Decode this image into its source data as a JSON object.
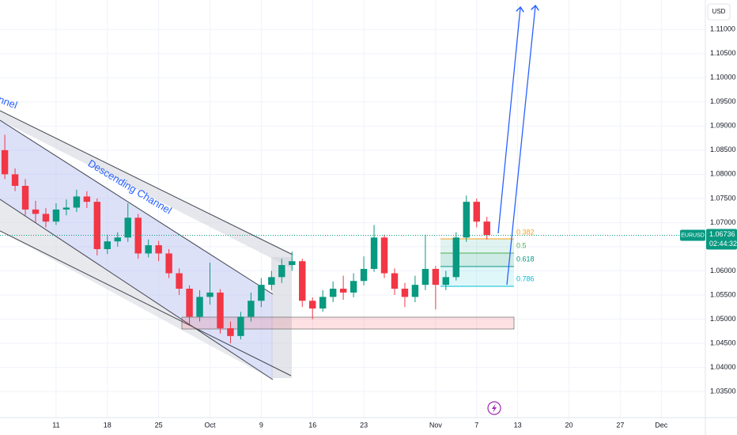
{
  "chart_data": {
    "type": "candlestick",
    "symbol": "EURUSD",
    "currency": "USD",
    "countdown": "02:44:32",
    "last_price": 1.06736,
    "annotations": [
      "Descending Channel",
      "nnel"
    ],
    "fib_levels": [
      0.382,
      0.5,
      0.618,
      0.786
    ],
    "up_color": "#089981",
    "down_color": "#f23645",
    "x": [
      -5,
      -4,
      -3,
      -2,
      -1,
      0,
      1,
      2,
      3,
      4,
      5,
      6,
      7,
      8,
      9,
      10,
      11,
      12,
      13,
      14,
      15,
      16,
      17,
      18,
      19,
      20,
      21,
      22,
      23,
      24,
      25,
      26,
      27,
      28,
      29,
      30,
      31,
      32,
      33,
      34,
      35,
      36,
      37,
      38,
      39,
      40,
      41,
      42
    ],
    "open": [
      1.085,
      1.08,
      1.0776,
      1.0727,
      1.0718,
      1.0702,
      1.0727,
      1.0731,
      1.0754,
      1.0743,
      1.0645,
      1.0661,
      1.0669,
      1.071,
      1.0636,
      1.0653,
      1.0636,
      1.0595,
      1.0563,
      1.0505,
      1.0546,
      1.0555,
      1.0481,
      1.0465,
      1.0505,
      1.0538,
      1.0571,
      1.0587,
      1.0612,
      1.062,
      1.0538,
      1.0522,
      1.0546,
      1.0563,
      1.0555,
      1.0579,
      1.0604,
      1.0669,
      1.0595,
      1.0563,
      1.0546,
      1.0571,
      1.0604,
      1.0571,
      1.0587,
      1.0669,
      1.0743,
      1.0702
    ],
    "high": [
      1.0882,
      1.0812,
      1.079,
      1.0745,
      1.073,
      1.074,
      1.0748,
      1.0768,
      1.0765,
      1.075,
      1.0675,
      1.068,
      1.074,
      1.0718,
      1.0665,
      1.0662,
      1.0645,
      1.0605,
      1.057,
      1.056,
      1.0617,
      1.0562,
      1.0495,
      1.0515,
      1.0555,
      1.0585,
      1.06,
      1.0625,
      1.064,
      1.0625,
      1.0545,
      1.056,
      1.0578,
      1.059,
      1.0595,
      1.063,
      1.0695,
      1.0675,
      1.0605,
      1.0575,
      1.059,
      1.0675,
      1.061,
      1.06,
      1.068,
      1.0756,
      1.075,
      1.0712
    ],
    "low": [
      1.079,
      1.0765,
      1.0715,
      1.07,
      1.069,
      1.0695,
      1.0715,
      1.0722,
      1.073,
      1.0632,
      1.0635,
      1.065,
      1.066,
      1.0625,
      1.0628,
      1.062,
      1.0585,
      1.055,
      1.049,
      1.0495,
      1.053,
      1.047,
      1.045,
      1.0458,
      1.0495,
      1.0525,
      1.056,
      1.0575,
      1.06,
      1.0525,
      1.05,
      1.0515,
      1.0535,
      1.054,
      1.0545,
      1.057,
      1.0598,
      1.0585,
      1.055,
      1.0525,
      1.0535,
      1.056,
      1.052,
      1.056,
      1.058,
      1.066,
      1.069,
      1.0665
    ],
    "close": [
      1.08,
      1.0776,
      1.0727,
      1.0718,
      1.0702,
      1.0727,
      1.0731,
      1.0754,
      1.0743,
      1.0645,
      1.0661,
      1.0669,
      1.071,
      1.0636,
      1.0653,
      1.0636,
      1.0595,
      1.0563,
      1.0505,
      1.0546,
      1.0555,
      1.0481,
      1.0465,
      1.0505,
      1.0538,
      1.0571,
      1.0587,
      1.0612,
      1.062,
      1.0538,
      1.0522,
      1.0546,
      1.0563,
      1.0555,
      1.0579,
      1.0604,
      1.0669,
      1.0595,
      1.0563,
      1.0546,
      1.0571,
      1.0604,
      1.0571,
      1.0587,
      1.0669,
      1.0743,
      1.0702,
      1.0674
    ],
    "xlim": [
      -5.47,
      63.3
    ],
    "xticks": [
      {
        "value": 0,
        "label": "11"
      },
      {
        "value": 5,
        "label": "18"
      },
      {
        "value": 10,
        "label": "25"
      },
      {
        "value": 15,
        "label": "Oct"
      },
      {
        "value": 20,
        "label": "9"
      },
      {
        "value": 25,
        "label": "16"
      },
      {
        "value": 30,
        "label": "23"
      },
      {
        "value": 37,
        "label": "Nov"
      },
      {
        "value": 41,
        "label": "7"
      },
      {
        "value": 45,
        "label": "13"
      },
      {
        "value": 50,
        "label": "20"
      },
      {
        "value": 55,
        "label": "27"
      },
      {
        "value": 59,
        "label": "Dec"
      }
    ],
    "ylim": [
      1.0296,
      1.1161
    ],
    "yticks": [
      {
        "value": 1.035,
        "label": "1.03500"
      },
      {
        "value": 1.04,
        "label": "1.04000"
      },
      {
        "value": 1.045,
        "label": "1.04500"
      },
      {
        "value": 1.05,
        "label": "1.05000"
      },
      {
        "value": 1.055,
        "label": "1.05500"
      },
      {
        "value": 1.06,
        "label": "1.06000"
      },
      {
        "value": 1.065,
        "label": "1.06500"
      },
      {
        "value": 1.07,
        "label": "1.07000"
      },
      {
        "value": 1.075,
        "label": "1.07500"
      },
      {
        "value": 1.08,
        "label": "1.08000"
      },
      {
        "value": 1.085,
        "label": "1.08500"
      },
      {
        "value": 1.09,
        "label": "1.09000"
      },
      {
        "value": 1.095,
        "label": "1.09500"
      },
      {
        "value": 1.1,
        "label": "1.10000"
      },
      {
        "value": 1.105,
        "label": "1.10500"
      },
      {
        "value": 1.11,
        "label": "1.11000"
      }
    ]
  }
}
